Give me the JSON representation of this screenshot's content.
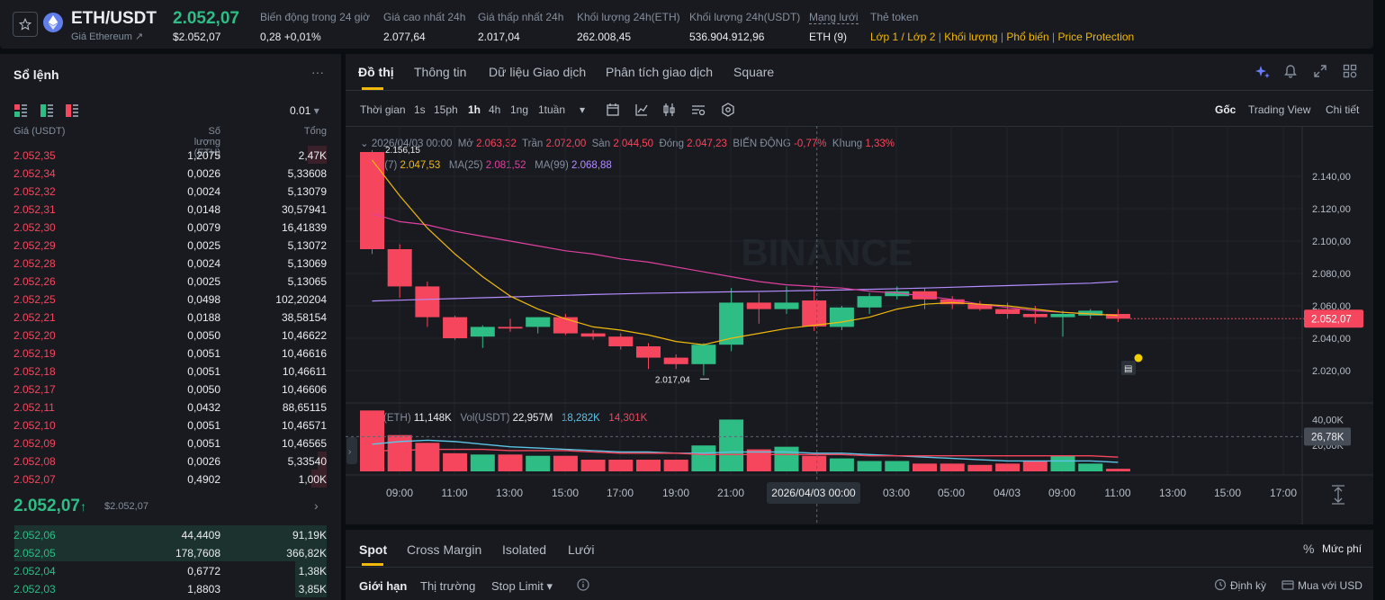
{
  "ticker": {
    "pair": "ETH/USDT",
    "subtitle": "Giá Ethereum ↗",
    "price": "2.052,07",
    "price_usd": "$2.052,07",
    "stats": [
      {
        "label": "Biến động trong 24 giờ",
        "value": "0,28 +0,01%",
        "color": "green"
      },
      {
        "label": "Giá cao nhất 24h",
        "value": "2.077,64",
        "color": "white"
      },
      {
        "label": "Giá thấp nhất 24h",
        "value": "2.017,04",
        "color": "white"
      },
      {
        "label": "Khối lượng 24h(ETH)",
        "value": "262.008,45",
        "color": "white"
      },
      {
        "label": "Khối lượng 24h(USDT)",
        "value": "536.904.912,96",
        "color": "white"
      },
      {
        "label": "Mạng lưới",
        "value": "ETH (9)",
        "color": "white"
      }
    ],
    "token_label": "Thẻ token",
    "tokens": [
      "Lớp 1 / Lớp 2",
      "Khối lượng",
      "Phổ biến",
      "Price Protection"
    ]
  },
  "orderbook": {
    "title": "Sổ lệnh",
    "more": "···",
    "precision": "0.01",
    "headers": [
      "Giá (USDT)",
      "Số lượng (ETH)",
      "Tổng"
    ],
    "asks": [
      {
        "price": "2.052,35",
        "qty": "1,2075",
        "total": "2,47K",
        "depth": 0.06
      },
      {
        "price": "2.052,34",
        "qty": "0,0026",
        "total": "5,33608",
        "depth": 0.0
      },
      {
        "price": "2.052,32",
        "qty": "0,0024",
        "total": "5,13079",
        "depth": 0.0
      },
      {
        "price": "2.052,31",
        "qty": "0,0148",
        "total": "30,57941",
        "depth": 0.0
      },
      {
        "price": "2.052,30",
        "qty": "0,0079",
        "total": "16,41839",
        "depth": 0.0
      },
      {
        "price": "2.052,29",
        "qty": "0,0025",
        "total": "5,13072",
        "depth": 0.0
      },
      {
        "price": "2.052,28",
        "qty": "0,0024",
        "total": "5,13069",
        "depth": 0.0
      },
      {
        "price": "2.052,26",
        "qty": "0,0025",
        "total": "5,13065",
        "depth": 0.0
      },
      {
        "price": "2.052,25",
        "qty": "0,0498",
        "total": "102,20204",
        "depth": 0.0
      },
      {
        "price": "2.052,21",
        "qty": "0,0188",
        "total": "38,58154",
        "depth": 0.0
      },
      {
        "price": "2.052,20",
        "qty": "0,0050",
        "total": "10,46622",
        "depth": 0.0
      },
      {
        "price": "2.052,19",
        "qty": "0,0051",
        "total": "10,46616",
        "depth": 0.0
      },
      {
        "price": "2.052,18",
        "qty": "0,0051",
        "total": "10,46611",
        "depth": 0.0
      },
      {
        "price": "2.052,17",
        "qty": "0,0050",
        "total": "10,46606",
        "depth": 0.0
      },
      {
        "price": "2.052,11",
        "qty": "0,0432",
        "total": "88,65115",
        "depth": 0.0
      },
      {
        "price": "2.052,10",
        "qty": "0,0051",
        "total": "10,46571",
        "depth": 0.0
      },
      {
        "price": "2.052,09",
        "qty": "0,0051",
        "total": "10,46565",
        "depth": 0.0
      },
      {
        "price": "2.052,08",
        "qty": "0,0026",
        "total": "5,33540",
        "depth": 0.03
      },
      {
        "price": "2.052,07",
        "qty": "0,4902",
        "total": "1,00K",
        "depth": 0.05
      }
    ],
    "last_price": "2.052,07",
    "last_arrow": "↑",
    "last_usd": "$2.052,07",
    "bids": [
      {
        "price": "2.052,06",
        "qty": "44,4409",
        "total": "91,19K",
        "depth": 1.0
      },
      {
        "price": "2.052,05",
        "qty": "178,7608",
        "total": "366,82K",
        "depth": 1.0
      },
      {
        "price": "2.052,04",
        "qty": "0,6772",
        "total": "1,38K",
        "depth": 0.1
      },
      {
        "price": "2.052,03",
        "qty": "1,8803",
        "total": "3,85K",
        "depth": 0.1
      }
    ]
  },
  "chart_panel": {
    "tabs": [
      "Đồ thị",
      "Thông tin",
      "Dữ liệu Giao dịch",
      "Phân tích giao dịch",
      "Square"
    ],
    "intervals": [
      "Thời gian",
      "1s",
      "15ph",
      "1h",
      "4h",
      "1ng",
      "1tuần"
    ],
    "active_interval": "1h",
    "views": [
      "Gốc",
      "Trading View",
      "Chi tiết"
    ],
    "ohlc": {
      "date": "2026/04/03 00:00",
      "labels": [
        "Mở",
        "Trần",
        "Sàn",
        "Đóng",
        "BIẾN ĐỘNG",
        "Khung"
      ],
      "values": [
        "2.063,32",
        "2.072,00",
        "2.044,50",
        "2.047,23",
        "-0,77%",
        "1,33%"
      ]
    },
    "ma": [
      {
        "label": "MA(7)",
        "value": "2.047,53",
        "color": "#f0b90b"
      },
      {
        "label": "MA(25)",
        "value": "2.081,52",
        "color": "#e040a0"
      },
      {
        "label": "MA(99)",
        "value": "2.068,88",
        "color": "#b48cff"
      }
    ],
    "vol": {
      "labels": [
        "Vol(ETH)",
        "Vol(USDT)"
      ],
      "values": [
        "11,148K",
        "22,957M",
        "18,282K",
        "14,301K"
      ]
    },
    "price_axis": [
      "2.140,00",
      "2.120,00",
      "2.100,00",
      "2.080,00",
      "2.060,00",
      "2.040,00",
      "2.020,00"
    ],
    "current_price_tag": "2.052,07",
    "high_label": "2.156,15",
    "low_label": "2.017,04",
    "vol_axis": [
      "40,00K",
      "20,00K"
    ],
    "vol_tag": "26,78K",
    "time_axis": [
      "09:00",
      "11:00",
      "13:00",
      "15:00",
      "17:00",
      "19:00",
      "21:00",
      "2026/04/03 00:00",
      "03:00",
      "05:00",
      "04/03",
      "09:00",
      "11:00",
      "13:00",
      "15:00",
      "17:00"
    ],
    "watermark": "BINANCE"
  },
  "chart_data": {
    "type": "candlestick",
    "candles": [
      {
        "o": 2155,
        "h": 2156.15,
        "l": 2092,
        "c": 2095
      },
      {
        "o": 2095,
        "h": 2098,
        "l": 2065,
        "c": 2072
      },
      {
        "o": 2072,
        "h": 2075,
        "l": 2047,
        "c": 2053
      },
      {
        "o": 2053,
        "h": 2054,
        "l": 2039,
        "c": 2040
      },
      {
        "o": 2041,
        "h": 2048,
        "l": 2034,
        "c": 2047
      },
      {
        "o": 2047,
        "h": 2052,
        "l": 2044,
        "c": 2046
      },
      {
        "o": 2047,
        "h": 2053,
        "l": 2043,
        "c": 2053
      },
      {
        "o": 2053,
        "h": 2055,
        "l": 2042,
        "c": 2043
      },
      {
        "o": 2043,
        "h": 2045,
        "l": 2039,
        "c": 2041
      },
      {
        "o": 2041,
        "h": 2043,
        "l": 2033,
        "c": 2035
      },
      {
        "o": 2035,
        "h": 2037,
        "l": 2021,
        "c": 2028
      },
      {
        "o": 2028,
        "h": 2030,
        "l": 2021,
        "c": 2024
      },
      {
        "o": 2024,
        "h": 2037,
        "l": 2017.04,
        "c": 2036
      },
      {
        "o": 2036,
        "h": 2071,
        "l": 2032,
        "c": 2062
      },
      {
        "o": 2062,
        "h": 2068,
        "l": 2049,
        "c": 2058
      },
      {
        "o": 2058,
        "h": 2072,
        "l": 2055,
        "c": 2062
      },
      {
        "o": 2063.32,
        "h": 2072,
        "l": 2044.5,
        "c": 2047.23
      },
      {
        "o": 2047,
        "h": 2060,
        "l": 2045,
        "c": 2059
      },
      {
        "o": 2059,
        "h": 2068,
        "l": 2055,
        "c": 2066
      },
      {
        "o": 2066,
        "h": 2072,
        "l": 2064,
        "c": 2069
      },
      {
        "o": 2069,
        "h": 2071,
        "l": 2058,
        "c": 2064
      },
      {
        "o": 2064,
        "h": 2066,
        "l": 2058,
        "c": 2061
      },
      {
        "o": 2061,
        "h": 2063,
        "l": 2057,
        "c": 2058
      },
      {
        "o": 2058,
        "h": 2062,
        "l": 2052,
        "c": 2055
      },
      {
        "o": 2055,
        "h": 2060,
        "l": 2049,
        "c": 2053
      },
      {
        "o": 2053,
        "h": 2057,
        "l": 2041,
        "c": 2055
      },
      {
        "o": 2054,
        "h": 2058,
        "l": 2052,
        "c": 2057
      },
      {
        "o": 2055,
        "h": 2058,
        "l": 2050,
        "c": 2052.07
      }
    ],
    "volumes": [
      47,
      28,
      22,
      14,
      13,
      13,
      12,
      12,
      9,
      9,
      9,
      9,
      20,
      40,
      17,
      19,
      12,
      10,
      8,
      8,
      6,
      6,
      5,
      6,
      8,
      12,
      6,
      2
    ],
    "ma7": [
      2150,
      2128,
      2108,
      2092,
      2078,
      2066,
      2058,
      2052,
      2047,
      2045,
      2042,
      2038,
      2036,
      2040,
      2043,
      2046,
      2048,
      2050,
      2053,
      2058,
      2061,
      2062,
      2061,
      2060,
      2058,
      2056,
      2055,
      2054
    ],
    "ma25": [
      2117,
      2112,
      2110,
      2106,
      2103,
      2100,
      2097,
      2094,
      2092,
      2089,
      2087,
      2084,
      2081,
      2078,
      2075,
      2073,
      2072,
      2071,
      2069,
      2068,
      2066,
      2064,
      2061,
      2059,
      2057,
      2056,
      2055,
      2054
    ],
    "ma99": [
      2063,
      2063.5,
      2064,
      2064.5,
      2065,
      2065.5,
      2066,
      2066.5,
      2067,
      2067.4,
      2067.8,
      2068.1,
      2068.4,
      2068.7,
      2068.9,
      2069.2,
      2069.5,
      2069.8,
      2070.2,
      2070.6,
      2071,
      2071.5,
      2072,
      2072.5,
      2073,
      2073.5,
      2074,
      2075
    ],
    "vol_ma1": [
      21,
      23,
      24,
      23,
      21,
      19,
      18,
      17,
      16,
      15,
      15,
      14,
      14,
      15,
      15,
      15,
      14,
      14,
      13,
      12,
      11,
      10,
      9,
      8,
      8,
      8,
      8,
      7
    ],
    "vol_ma2": [
      16,
      16,
      17,
      17,
      17,
      16,
      16,
      16,
      15,
      14,
      14,
      14,
      13,
      13,
      13,
      13,
      13,
      13,
      12,
      12,
      12,
      12,
      12,
      12,
      12,
      12,
      12,
      11
    ],
    "price_range": [
      2010,
      2160
    ],
    "volume_range": [
      0,
      50
    ]
  },
  "trade": {
    "tabs": [
      "Spot",
      "Cross Margin",
      "Isolated",
      "Lưới"
    ],
    "fee_label": "Mức phí",
    "order_types": [
      "Giới hạn",
      "Thị trường",
      "Stop Limit"
    ],
    "dinh_ky": "Định kỳ",
    "mua_usd": "Mua với USD"
  }
}
